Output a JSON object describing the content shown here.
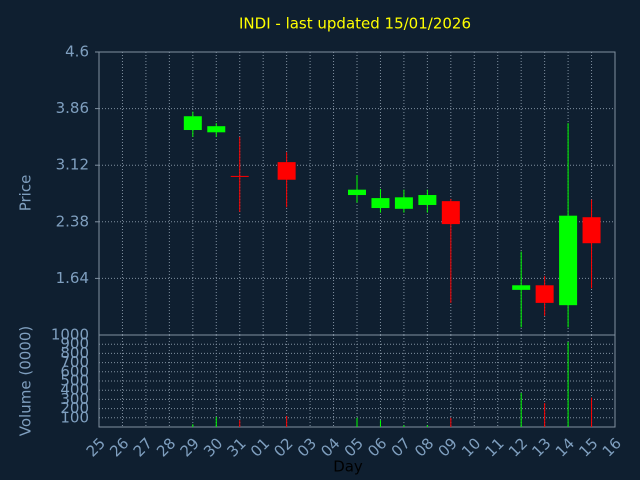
{
  "chart_data": {
    "type": "candlestick",
    "title": "INDI - last updated 15/01/2026",
    "x_label": "Day",
    "y_label": "Price",
    "volume_label": "Volume (0000)",
    "categories": [
      "25",
      "26",
      "27",
      "28",
      "29",
      "30",
      "31",
      "01",
      "02",
      "03",
      "04",
      "05",
      "06",
      "07",
      "08",
      "09",
      "10",
      "11",
      "12",
      "13",
      "14",
      "15",
      "16"
    ],
    "open": [
      null,
      null,
      null,
      null,
      3.58,
      3.55,
      2.98,
      null,
      3.16,
      null,
      null,
      2.73,
      2.56,
      2.55,
      2.6,
      2.65,
      null,
      null,
      1.49,
      1.55,
      1.29,
      2.44,
      null
    ],
    "high": [
      null,
      null,
      null,
      null,
      3.82,
      3.67,
      3.49,
      null,
      3.29,
      null,
      null,
      2.99,
      2.81,
      2.8,
      2.8,
      2.68,
      null,
      null,
      1.99,
      1.67,
      3.67,
      2.67,
      null
    ],
    "low": [
      null,
      null,
      null,
      null,
      3.49,
      3.49,
      2.51,
      null,
      2.57,
      null,
      null,
      2.63,
      2.5,
      2.5,
      2.5,
      1.32,
      null,
      null,
      1.0,
      1.15,
      1.0,
      1.51,
      null
    ],
    "close": [
      null,
      null,
      null,
      null,
      3.76,
      3.63,
      2.98,
      null,
      2.93,
      null,
      null,
      2.8,
      2.69,
      2.7,
      2.73,
      2.35,
      null,
      null,
      1.55,
      1.32,
      2.46,
      2.1,
      null
    ],
    "volume": [
      null,
      null,
      null,
      null,
      30,
      110,
      75,
      null,
      120,
      null,
      null,
      100,
      75,
      20,
      20,
      100,
      null,
      null,
      370,
      260,
      925,
      320,
      null
    ],
    "up_color": "#00ff00",
    "down_color": "#ff0000",
    "ylim": [
      0.9,
      4.6
    ],
    "yticks": [
      1.64,
      2.38,
      3.12,
      3.86,
      4.6
    ],
    "volume_ylim": [
      0,
      1000
    ],
    "volume_yticks": [
      100,
      200,
      300,
      400,
      500,
      600,
      700,
      800,
      900,
      1000
    ],
    "grid": true
  }
}
